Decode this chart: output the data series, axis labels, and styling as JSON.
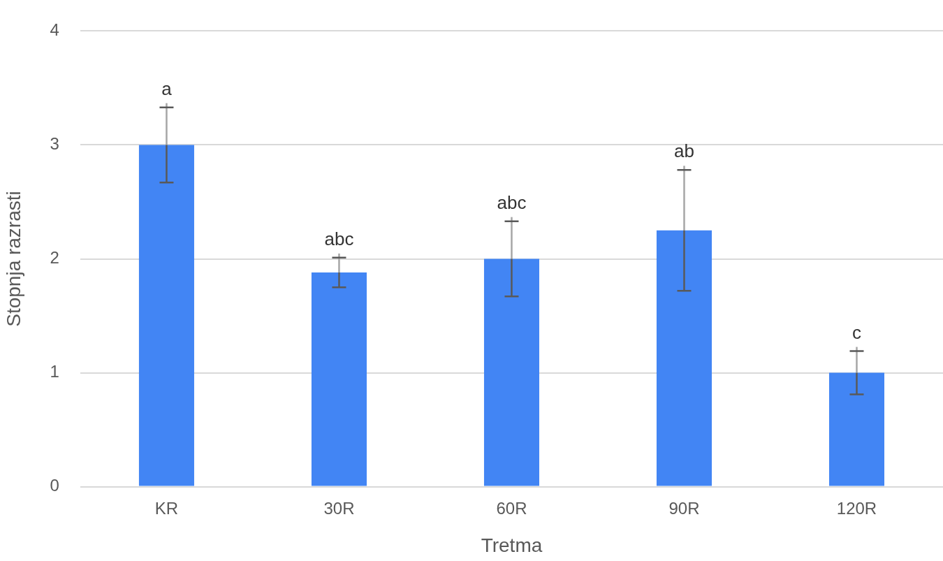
{
  "chart_data": {
    "type": "bar",
    "xlabel": "Tretma",
    "ylabel": "Stopnja razrasti",
    "categories": [
      "KR",
      "30R",
      "60R",
      "90R",
      "120R"
    ],
    "values": [
      3.0,
      1.88,
      2.0,
      2.25,
      1.0
    ],
    "errors": [
      0.33,
      0.13,
      0.33,
      0.53,
      0.19
    ],
    "color": "#4285f4",
    "ylim": [
      0,
      4
    ],
    "yticks": [
      0,
      1,
      2,
      3,
      4
    ],
    "grid": "y",
    "legend": false,
    "annotations": [
      {
        "text": "a",
        "x": "KR",
        "y": 3.0
      },
      {
        "text": "abc",
        "x": "30R",
        "y": 1.88
      },
      {
        "text": "abc",
        "x": "60R",
        "y": 2.0
      },
      {
        "text": "ab",
        "x": "90R",
        "y": 2.25
      },
      {
        "text": "c",
        "x": "120R",
        "y": 1.0
      }
    ]
  }
}
